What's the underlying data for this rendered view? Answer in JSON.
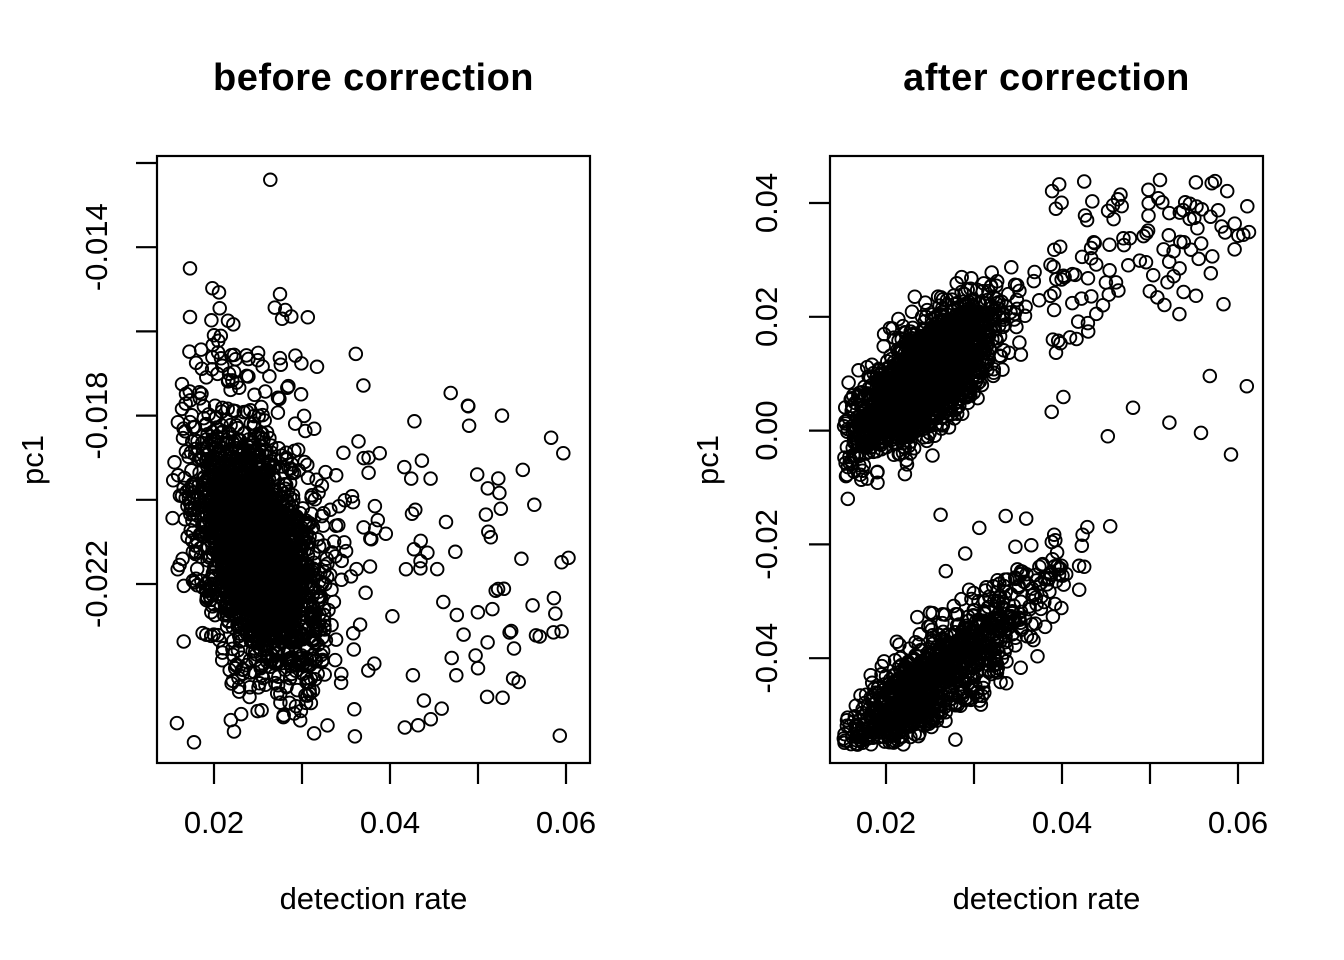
{
  "figure": {
    "background": "#ffffff",
    "foreground": "#000000",
    "marker": "open-circle",
    "marker_color": "#000000"
  },
  "chart_data": [
    {
      "type": "scatter",
      "title": "before correction",
      "xlabel": "detection rate",
      "ylabel": "pc1",
      "xlim": [
        0.013523,
        0.062727
      ],
      "ylim": [
        -0.026252,
        -0.011834
      ],
      "grid": false,
      "xticks": {
        "values": [
          0.02,
          0.03,
          0.04,
          0.05,
          0.06
        ],
        "labels": [
          "0.02",
          "",
          "0.04",
          "",
          "0.06"
        ]
      },
      "yticks": {
        "values": [
          -0.022,
          -0.02,
          -0.018,
          -0.016,
          -0.014,
          -0.012
        ],
        "labels": [
          "-0.022",
          "",
          "-0.018",
          "",
          "-0.014",
          ""
        ]
      },
      "approx_n_points": 2700,
      "distribution_summary": "very dense cluster centered near (0.025, -0.0212) with negative x-y correlation, speckled halo reaching up to pc1 -0.015, sparse scatter for detection rate 0.036-0.061 around pc1 -0.021, single outlier at top",
      "clusters": [
        {
          "kind": "gauss",
          "n": 2300,
          "cx": 0.0249,
          "cy": -0.02125,
          "sx": 0.0034,
          "sy": 0.00135,
          "rho": -0.42,
          "clip": {
            "xmin": 0.0152,
            "xmax": 0.0455,
            "ymin": -0.0256,
            "ymax": -0.0165
          }
        },
        {
          "kind": "gauss",
          "n": 285,
          "cx": 0.0242,
          "cy": -0.0206,
          "sx": 0.005,
          "sy": 0.0027,
          "rho": -0.3,
          "clip": {
            "xmin": 0.0152,
            "xmax": 0.0535,
            "ymin": -0.0258,
            "ymax": -0.015
          }
        },
        {
          "kind": "gauss",
          "n": 18,
          "cx": 0.0225,
          "cy": -0.0163,
          "sx": 0.0042,
          "sy": 0.0011,
          "rho": 0,
          "clip": {
            "xmin": 0.0155,
            "xmax": 0.034,
            "ymin": -0.0185,
            "ymax": -0.0137
          }
        },
        {
          "kind": "band",
          "n": 85,
          "x": {
            "dist": "unif",
            "min": 0.0355,
            "max": 0.0608
          },
          "xref": 0.045,
          "yref": -0.0212,
          "slope": -0.04,
          "noise": 0.0021,
          "clip": {
            "ymin": -0.026,
            "ymax": -0.0166
          }
        }
      ],
      "extra_points": [
        [
          0.0264,
          -0.0124
        ],
        [
          0.0593,
          -0.0256
        ],
        [
          0.0528,
          -0.0247
        ],
        [
          0.05,
          -0.024
        ]
      ]
    },
    {
      "type": "scatter",
      "title": "after correction",
      "xlabel": "detection rate",
      "ylabel": "pc1",
      "xlim": [
        0.013636,
        0.062841
      ],
      "ylim": [
        -0.058418,
        0.048261
      ],
      "grid": false,
      "xticks": {
        "values": [
          0.02,
          0.03,
          0.04,
          0.05,
          0.06
        ],
        "labels": [
          "0.02",
          "",
          "0.04",
          "",
          "0.06"
        ]
      },
      "yticks": {
        "values": [
          -0.04,
          -0.02,
          0.0,
          0.02,
          0.04
        ],
        "labels": [
          "-0.04",
          "-0.02",
          "0.00",
          "0.02",
          "0.04"
        ]
      },
      "approx_n_points": 3100,
      "distribution_summary": "two upward-sloping bands: dense upper band centered near (0.0245, 0.010) spanning pc1 -0.012 to 0.028 with sparse tail rising to (0.061, 0.044); elongated lower band from (0.015, -0.055) to (0.051, -0.004) with dense sub-cluster near (0.022, -0.046); a few strays between the bands",
      "clusters": [
        {
          "kind": "band",
          "n": 2000,
          "x": {
            "dist": "norm",
            "mean": 0.0244,
            "sd": 0.0041,
            "min": 0.0152,
            "max": 0.039
          },
          "xref": 0.0244,
          "yref": 0.0095,
          "slope": 1.15,
          "noise": 0.0046,
          "clip": {
            "ymin": -0.0128,
            "ymax": 0.029
          }
        },
        {
          "kind": "band",
          "n": 118,
          "x": {
            "dist": "unif",
            "min": 0.0385,
            "max": 0.0618
          },
          "xref": 0.0244,
          "yref": 0.01,
          "slope": 1.0,
          "noise": 0.0105,
          "clip": {
            "ymin": -0.003,
            "ymax": 0.0443
          }
        },
        {
          "kind": "band",
          "n": 620,
          "x": {
            "dist": "norm",
            "mean": 0.027,
            "sd": 0.0063,
            "min": 0.0152,
            "max": 0.0518
          },
          "xref": 0.027,
          "yref": -0.0425,
          "slope": 1.32,
          "noise": 0.0046,
          "clip": {
            "ymin": -0.0552,
            "ymax": -0.003
          }
        },
        {
          "kind": "band",
          "n": 380,
          "x": {
            "dist": "norm",
            "mean": 0.0224,
            "sd": 0.0036,
            "min": 0.0152,
            "max": 0.0335
          },
          "xref": 0.0224,
          "yref": -0.0458,
          "slope": 1.28,
          "noise": 0.0034,
          "clip": {
            "ymin": -0.0552,
            "ymax": -0.027
          }
        }
      ],
      "extra_points": [
        [
          0.0262,
          -0.0148
        ],
        [
          0.0306,
          -0.0171
        ],
        [
          0.0336,
          -0.015
        ],
        [
          0.029,
          -0.0216
        ],
        [
          0.0347,
          -0.0204
        ],
        [
          0.0268,
          -0.0247
        ],
        [
          0.0398,
          -0.0242
        ],
        [
          0.0452,
          -0.001
        ],
        [
          0.0522,
          0.0014
        ],
        [
          0.0558,
          -0.0004
        ],
        [
          0.0592,
          -0.0042
        ],
        [
          0.061,
          0.0078
        ],
        [
          0.0568,
          0.0096
        ]
      ]
    }
  ]
}
